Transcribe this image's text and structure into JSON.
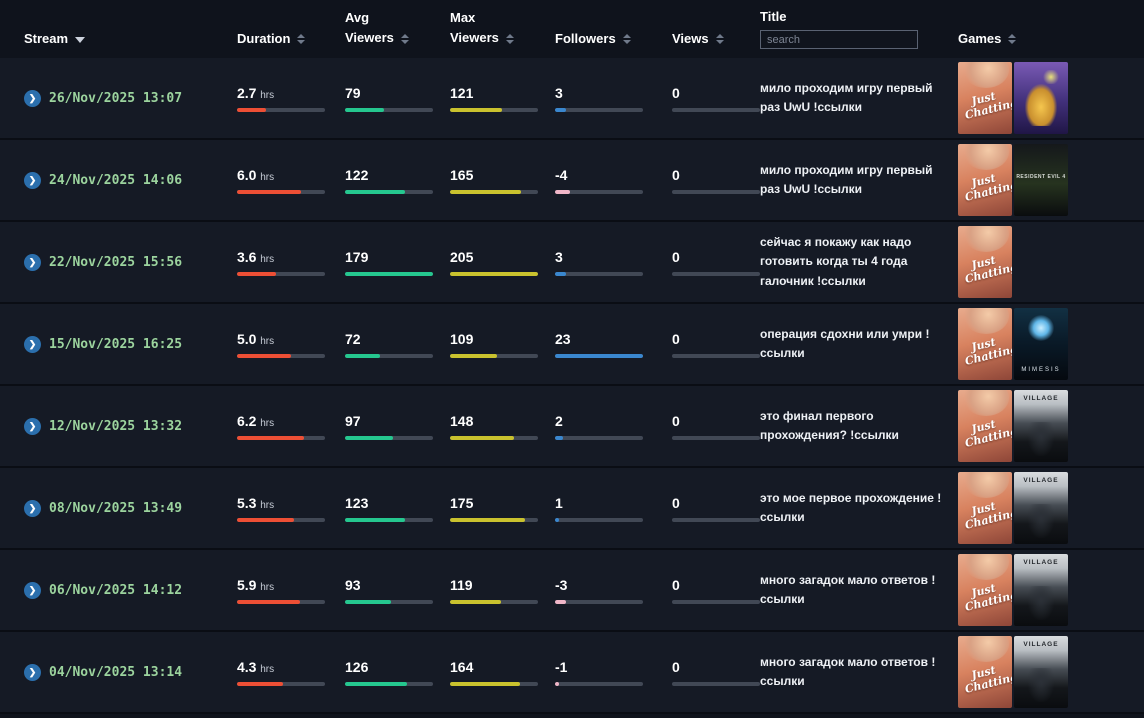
{
  "header": {
    "columns": {
      "stream": "Stream",
      "duration": "Duration",
      "avg_line1": "Avg",
      "avg_line2": "Viewers",
      "max_line1": "Max",
      "max_line2": "Viewers",
      "followers": "Followers",
      "views": "Views",
      "title": "Title",
      "games": "Games"
    },
    "search_placeholder": "search"
  },
  "icons": {
    "expand": "❯"
  },
  "units": {
    "duration": "hrs"
  },
  "colors": {
    "duration_bar": "#ed4f35",
    "avg_viewers_bar": "#25c78f",
    "max_viewers_bar": "#c9c22e",
    "followers_bar": "#3a87cf",
    "views_bar": "#6b7383",
    "negative_bar": "#f0b6c8",
    "date_text": "#9cd49e",
    "chevron_bg": "#2b6fad"
  },
  "scales": {
    "duration": 8.2,
    "avg_viewers": 179,
    "max_viewers": 205,
    "followers": 23,
    "views": 1
  },
  "games_catalog": {
    "just_chatting": {
      "kind": "just-chatting",
      "label": "Just Chatting"
    },
    "cartoon_game": {
      "kind": "cartoon",
      "label": ""
    },
    "resident_evil_4": {
      "kind": "re4",
      "label": "RESIDENT EVIL 4"
    },
    "mimesis": {
      "kind": "mimesis",
      "label": "MIMESIS"
    },
    "village": {
      "kind": "village",
      "label": "VILLAGE"
    }
  },
  "rows": [
    {
      "date": "26/Nov/2025 13:07",
      "duration_display": "2.7",
      "avg_viewers": 79,
      "max_viewers": 121,
      "followers": 3,
      "views": 0,
      "title": "мило проходим игру первый раз UwU !ссылки",
      "games": [
        "just_chatting",
        "cartoon_game"
      ]
    },
    {
      "date": "24/Nov/2025 14:06",
      "duration_display": "6.0",
      "avg_viewers": 122,
      "max_viewers": 165,
      "followers": -4,
      "views": 0,
      "title": "мило проходим игру первый раз UwU !ссылки",
      "games": [
        "just_chatting",
        "resident_evil_4"
      ]
    },
    {
      "date": "22/Nov/2025 15:56",
      "duration_display": "3.6",
      "avg_viewers": 179,
      "max_viewers": 205,
      "followers": 3,
      "views": 0,
      "title": "сейчас я покажу как надо готовить когда ты 4 года галочник !ссылки",
      "games": [
        "just_chatting"
      ]
    },
    {
      "date": "15/Nov/2025 16:25",
      "duration_display": "5.0",
      "avg_viewers": 72,
      "max_viewers": 109,
      "followers": 23,
      "views": 0,
      "title": "операция сдохни или умри ! ссылки",
      "games": [
        "just_chatting",
        "mimesis"
      ]
    },
    {
      "date": "12/Nov/2025 13:32",
      "duration_display": "6.2",
      "avg_viewers": 97,
      "max_viewers": 148,
      "followers": 2,
      "views": 0,
      "title": "это финал первого прохождения? !ссылки",
      "games": [
        "just_chatting",
        "village"
      ]
    },
    {
      "date": "08/Nov/2025 13:49",
      "duration_display": "5.3",
      "avg_viewers": 123,
      "max_viewers": 175,
      "followers": 1,
      "views": 0,
      "title": "это мое первое прохождение ! ссылки",
      "games": [
        "just_chatting",
        "village"
      ]
    },
    {
      "date": "06/Nov/2025 14:12",
      "duration_display": "5.9",
      "avg_viewers": 93,
      "max_viewers": 119,
      "followers": -3,
      "views": 0,
      "title": "много загадок мало ответов ! ссылки",
      "games": [
        "just_chatting",
        "village"
      ]
    },
    {
      "date": "04/Nov/2025 13:14",
      "duration_display": "4.3",
      "avg_viewers": 126,
      "max_viewers": 164,
      "followers": -1,
      "views": 0,
      "title": "много загадок мало ответов ! ссылки",
      "games": [
        "just_chatting",
        "village"
      ]
    }
  ]
}
